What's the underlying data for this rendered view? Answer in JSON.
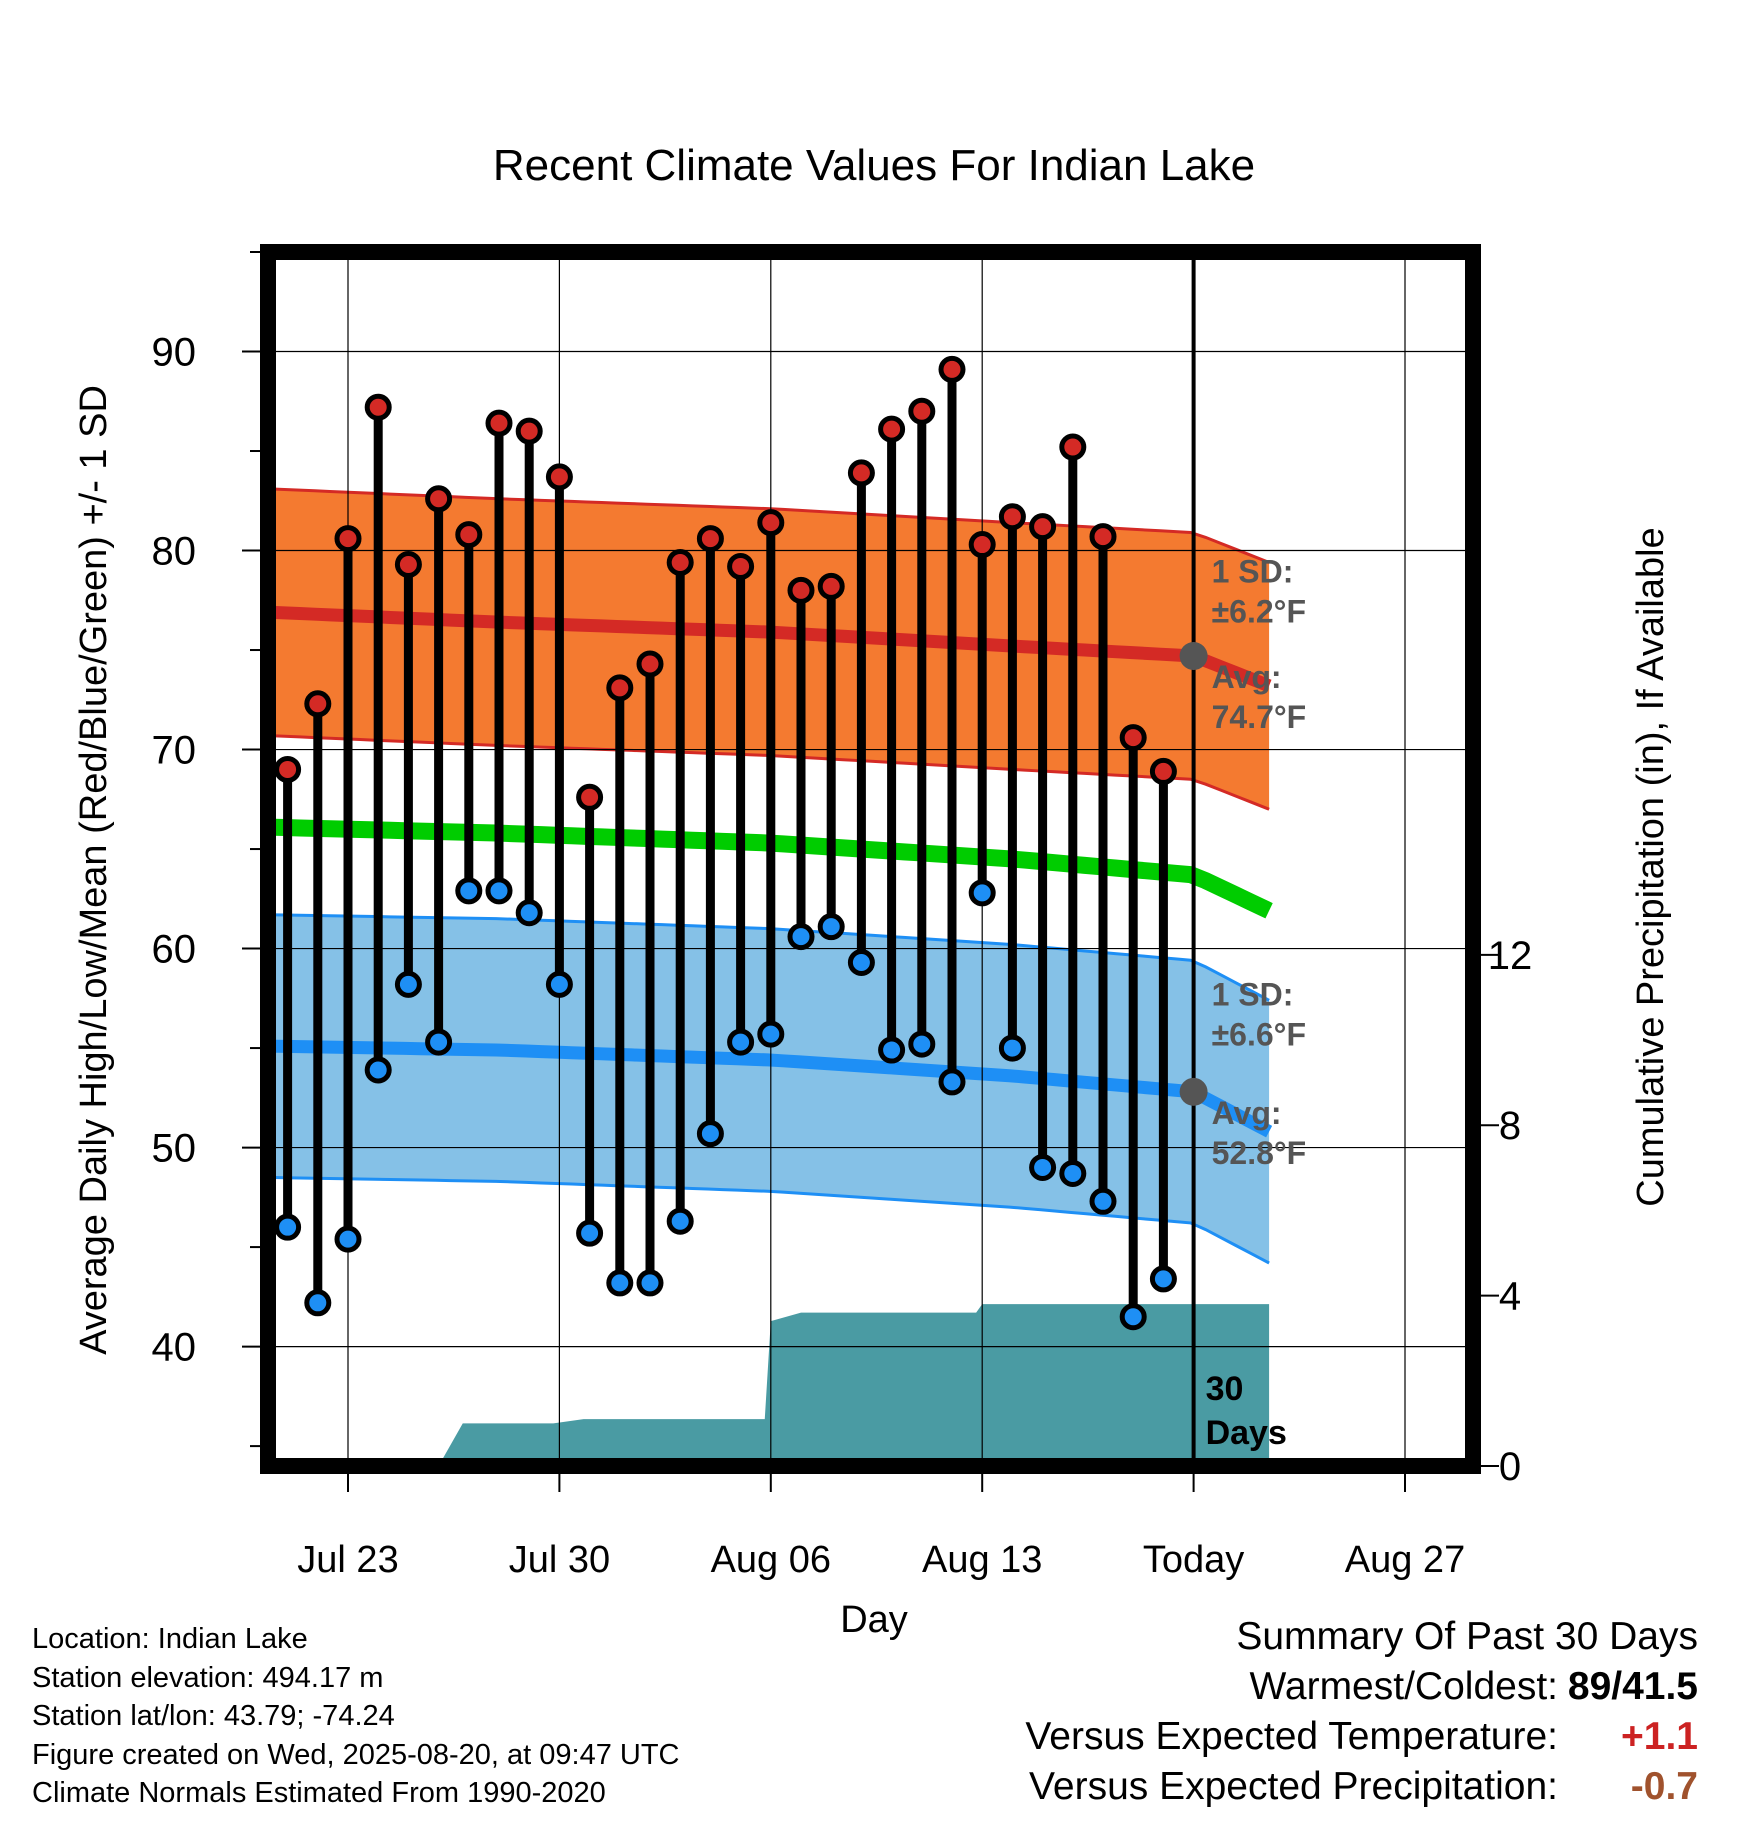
{
  "chart_data": {
    "type": "line",
    "title": "Recent Climate Values For Indian Lake",
    "xlabel": "Day",
    "ylabel": "Average Daily High/Low/Mean (Red/Blue/Green) +/- 1 SD",
    "y2label": "Cumulative Precipitation (in), If Available",
    "ylim": [
      34,
      95
    ],
    "y2lim": [
      0,
      28.5
    ],
    "yticks": [
      40,
      50,
      60,
      70,
      80,
      90
    ],
    "y2ticks": [
      0,
      4,
      8,
      12
    ],
    "xlim": [
      -2.6,
      30.5
    ],
    "xticks": [
      {
        "day": 0,
        "label": "Jul 23"
      },
      {
        "day": 7,
        "label": "Jul 30"
      },
      {
        "day": 14,
        "label": "Aug 06"
      },
      {
        "day": 21,
        "label": "Aug 13"
      },
      {
        "day": 28,
        "label": "Today"
      },
      {
        "day": 35,
        "label": "Aug 27"
      }
    ],
    "today_day": 28,
    "days_label": "30 Days",
    "days": [
      -2,
      -1,
      0,
      1,
      2,
      3,
      4,
      5,
      6,
      7,
      8,
      9,
      10,
      11,
      12,
      13,
      14,
      15,
      16,
      17,
      18,
      19,
      20,
      21,
      22,
      23,
      24,
      25,
      26,
      27
    ],
    "observed_high": [
      69.0,
      72.3,
      80.6,
      87.2,
      79.3,
      82.6,
      80.8,
      86.4,
      86.0,
      83.7,
      67.6,
      73.1,
      74.3,
      79.4,
      80.6,
      79.2,
      81.4,
      78.0,
      78.2,
      83.9,
      86.1,
      87.0,
      89.1,
      80.3,
      81.7,
      81.2,
      85.2,
      80.7,
      70.6,
      68.9
    ],
    "observed_low": [
      46.0,
      42.2,
      45.4,
      53.9,
      58.2,
      55.3,
      62.9,
      62.9,
      61.8,
      58.2,
      45.7,
      43.2,
      43.2,
      46.3,
      50.7,
      55.3,
      55.7,
      60.6,
      61.1,
      59.3,
      54.9,
      55.2,
      53.3,
      62.8,
      55.0,
      49.0,
      48.7,
      47.3,
      41.5,
      43.4
    ],
    "normal_high": {
      "days": [
        -2.6,
        5,
        14,
        22,
        28,
        30.5
      ],
      "mean": [
        76.9,
        76.4,
        75.9,
        75.2,
        74.7,
        73.2
      ],
      "sd": 6.2
    },
    "normal_low": {
      "days": [
        -2.6,
        5,
        14,
        22,
        28,
        30.5
      ],
      "mean": [
        55.1,
        54.9,
        54.4,
        53.6,
        52.8,
        50.8
      ],
      "sd": 6.6
    },
    "normal_mean": {
      "days": [
        -2.6,
        5,
        14,
        22,
        28,
        30.5
      ],
      "values": [
        66.1,
        65.8,
        65.3,
        64.5,
        63.7,
        61.9
      ]
    },
    "cumulative_precip": {
      "days": [
        -2.6,
        3,
        3.8,
        6.8,
        7.8,
        12.8,
        13.8,
        14,
        15,
        19.8,
        20.8,
        21,
        22,
        30.5
      ],
      "values": [
        0,
        0,
        1.0,
        1.0,
        1.1,
        1.1,
        1.1,
        3.4,
        3.6,
        3.6,
        3.6,
        3.8,
        3.8,
        3.8
      ]
    },
    "annotations": {
      "high_sd": [
        "1 SD:",
        "±6.2°F"
      ],
      "high_avg": [
        "Avg:",
        "74.7°F"
      ],
      "low_sd": [
        "1 SD:",
        "±6.6°F"
      ],
      "low_avg": [
        "Avg:",
        "52.8°F"
      ]
    },
    "colors": {
      "high_band": "#f47a30",
      "high_line": "#d42a25",
      "low_band": "#85c1e7",
      "low_line": "#1e8ff5",
      "mean_line": "#00cc00",
      "precip": "#4a9ba3",
      "high_marker": "#d42a25",
      "low_marker": "#1e8ff5"
    }
  },
  "station_info": [
    "Location: Indian Lake",
    "Station elevation: 494.17 m",
    "Station lat/lon: 43.79; -74.24",
    "Figure created on Wed, 2025-08-20, at 09:47 UTC",
    "Climate Normals Estimated From 1990-2020"
  ],
  "summary": {
    "heading": "Summary Of Past 30 Days",
    "warmest_coldest_label": "Warmest/Coldest:",
    "warmest_coldest_value": "89/41.5",
    "temp_label": "Versus Expected Temperature:",
    "temp_value": "+1.1",
    "temp_color": "#cc2222",
    "precip_label": "Versus Expected Precipitation:",
    "precip_value": "-0.7",
    "precip_color": "#a0522d"
  }
}
